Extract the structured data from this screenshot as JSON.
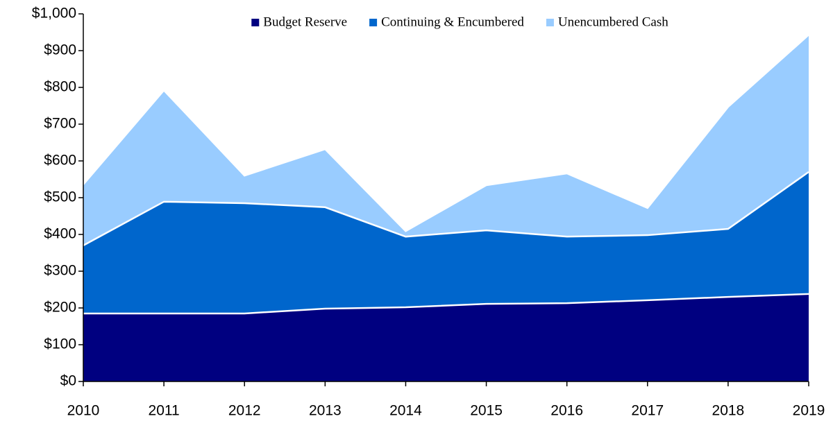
{
  "chart_data": {
    "type": "stacked_area",
    "x": [
      2010,
      2011,
      2012,
      2013,
      2014,
      2015,
      2016,
      2017,
      2018,
      2019
    ],
    "series": [
      {
        "name": "Budget Reserve",
        "color": "#000080",
        "values": [
          185,
          185,
          185,
          198,
          202,
          211,
          213,
          221,
          230,
          238
        ]
      },
      {
        "name": "Continuing & Encumbered",
        "color": "#0066cc",
        "values": [
          185,
          304,
          300,
          276,
          192,
          200,
          181,
          177,
          185,
          332
        ]
      },
      {
        "name": "Unencumbered Cash",
        "color": "#99ccff",
        "values": [
          166,
          303,
          75,
          158,
          15,
          123,
          172,
          74,
          332,
          373
        ]
      }
    ],
    "xlim": [
      2010,
      2019
    ],
    "xticks": [
      2010,
      2011,
      2012,
      2013,
      2014,
      2015,
      2016,
      2017,
      2018,
      2019
    ],
    "ylim": [
      0,
      1000
    ],
    "yticks": [
      {
        "value": 0,
        "label": "$0"
      },
      {
        "value": 100,
        "label": "$100"
      },
      {
        "value": 200,
        "label": "$200"
      },
      {
        "value": 300,
        "label": "$300"
      },
      {
        "value": 400,
        "label": "$400"
      },
      {
        "value": 500,
        "label": "$500"
      },
      {
        "value": 600,
        "label": "$600"
      },
      {
        "value": 700,
        "label": "$700"
      },
      {
        "value": 800,
        "label": "$800"
      },
      {
        "value": 900,
        "label": "$900"
      },
      {
        "value": 1000,
        "label": "$1,000"
      }
    ],
    "legend": "top",
    "grid": false
  }
}
